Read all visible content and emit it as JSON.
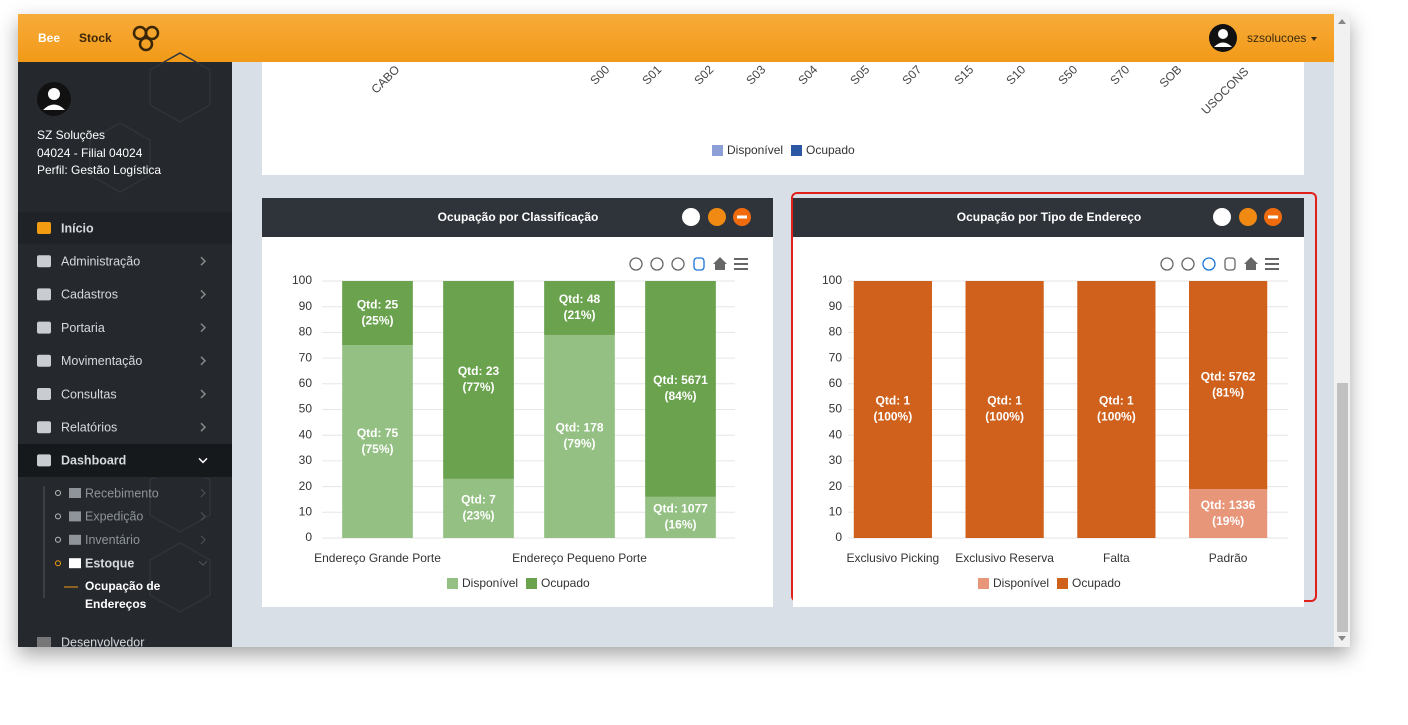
{
  "header": {
    "logo_bee": "Bee",
    "logo_stock": "Stock",
    "user": "szsolucoes"
  },
  "sidebar": {
    "name": "SZ Soluções",
    "branch": "04024 - Filial 04024",
    "profile": "Perfil: Gestão Logística",
    "menu": [
      "Início",
      "Administração",
      "Cadastros",
      "Portaria",
      "Movimentação",
      "Consultas",
      "Relatórios",
      "Dashboard"
    ],
    "dashboard_items": [
      "Recebimento",
      "Expedição",
      "Inventário",
      "Estoque"
    ],
    "stock_item_lines": [
      "Ocupação de",
      "Endereços"
    ],
    "bottom_item": "Desenvolvedor"
  },
  "top_panel": {
    "x_labels": [
      "CABO",
      "S00",
      "S01",
      "S02",
      "S03",
      "S04",
      "S05",
      "S07",
      "S15",
      "S10",
      "S50",
      "S70",
      "SOB",
      "USOCONS"
    ],
    "legend": [
      {
        "name": "Disponível",
        "color": "#8c9fd6"
      },
      {
        "name": "Ocupado",
        "color": "#2c57a5"
      }
    ]
  },
  "chart_data": [
    {
      "type": "bar",
      "stacked": true,
      "title": "Ocupação por Classificação",
      "categories": [
        "Endereço Grande Porte",
        null,
        "Endereço Pequeno Porte",
        null
      ],
      "series": [
        {
          "name": "Disponível",
          "color": "#94c183",
          "values": [
            75,
            23,
            79,
            16
          ],
          "value_labels": [
            [
              "Qtd: 75",
              "(75%)"
            ],
            [
              "Qtd: 7",
              "(23%)"
            ],
            [
              "Qtd: 178",
              "(79%)"
            ],
            [
              "Qtd: 1077",
              "(16%)"
            ]
          ]
        },
        {
          "name": "Ocupado",
          "color": "#6aa24e",
          "values": [
            25,
            77,
            21,
            84
          ],
          "value_labels": [
            [
              "Qtd: 25",
              "(25%)"
            ],
            [
              "Qtd: 23",
              "(77%)"
            ],
            [
              "Qtd: 48",
              "(21%)"
            ],
            [
              "Qtd: 5671",
              "(84%)"
            ]
          ]
        }
      ],
      "ylim": [
        0,
        100
      ],
      "yticks": [
        0,
        10,
        20,
        30,
        40,
        50,
        60,
        70,
        80,
        90,
        100
      ],
      "grid": true
    },
    {
      "type": "bar",
      "stacked": true,
      "title": "Ocupação por Tipo de Endereço",
      "categories": [
        "Exclusivo Picking",
        "Exclusivo Reserva",
        "Falta",
        "Padrão"
      ],
      "series": [
        {
          "name": "Disponível",
          "color": "#e8967a",
          "values": [
            0,
            0,
            0,
            19
          ],
          "value_labels": [
            null,
            null,
            null,
            [
              "Qtd: 1336",
              "(19%)"
            ]
          ]
        },
        {
          "name": "Ocupado",
          "color": "#d0611c",
          "values": [
            100,
            100,
            100,
            81
          ],
          "value_labels": [
            [
              "Qtd: 1",
              "(100%)"
            ],
            [
              "Qtd: 1",
              "(100%)"
            ],
            [
              "Qtd: 1",
              "(100%)"
            ],
            [
              "Qtd: 5762",
              "(81%)"
            ]
          ]
        }
      ],
      "ylim": [
        0,
        100
      ],
      "yticks": [
        0,
        10,
        20,
        30,
        40,
        50,
        60,
        70,
        80,
        90,
        100
      ],
      "grid": true
    }
  ]
}
